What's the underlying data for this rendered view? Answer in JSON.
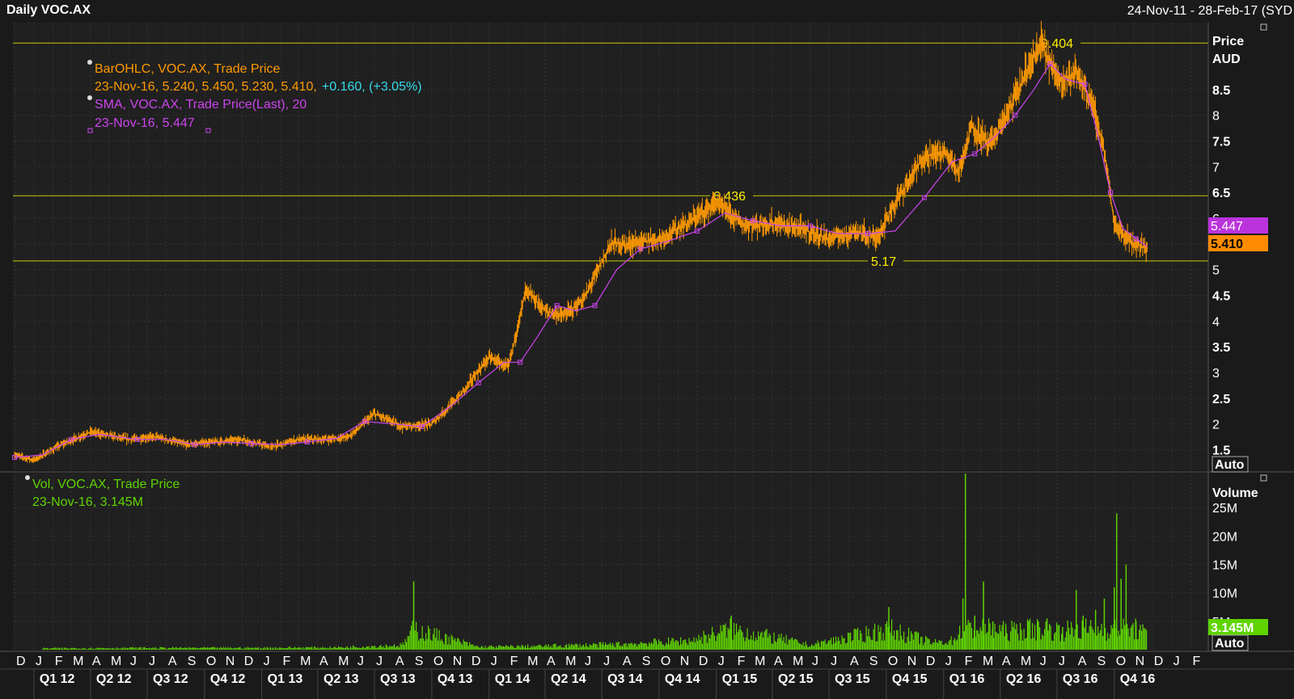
{
  "header": {
    "title": "Daily VOC.AX",
    "range": "24-Nov-11 - 28-Feb-17 (SYD"
  },
  "legend": {
    "ohlc_name": "BarOHLC, VOC.AX, Trade Price",
    "ohlc_values": "23-Nov-16, 5.240, 5.450, 5.230, 5.410,",
    "ohlc_change": "+0.160, (+3.05%)",
    "sma_name": "SMA, VOC.AX, Trade Price(Last),  20",
    "sma_values": "23-Nov-16, 5.447",
    "vol_name": "Vol, VOC.AX, Trade Price",
    "vol_values": "23-Nov-16, 3.145M"
  },
  "price_axis": {
    "title1": "Price",
    "title2": "AUD",
    "last_sma": "5.447",
    "last_close": "5.410",
    "auto": "Auto"
  },
  "volume_axis": {
    "title": "Volume",
    "last_vol": "3.145M",
    "auto": "Auto"
  },
  "colors": {
    "bg": "#1a1a1a",
    "grid": "#333333",
    "price": "#ff9a00",
    "sma": "#cc44ee",
    "volume": "#5fd400",
    "hline": "#c8c800",
    "cyan": "#33ddee"
  },
  "chart_data": [
    {
      "type": "line",
      "title": "Daily VOC.AX",
      "ylabel": "Price AUD",
      "ylim": [
        1.1,
        9.8
      ],
      "yticks": [
        1.5,
        2,
        2.5,
        3,
        3.5,
        4,
        4.5,
        5,
        5.5,
        6,
        6.5,
        7,
        7.5,
        8,
        8.5
      ],
      "ytick_labels": [
        "1.5",
        "2",
        "2.5",
        "3",
        "3.5",
        "4",
        "4.5",
        "5",
        "5.5",
        "6",
        "6.5",
        "7",
        "7.5",
        "8",
        "8.5"
      ],
      "x_range": [
        "24-Nov-11",
        "28-Feb-17"
      ],
      "month_labels": [
        "D",
        "J",
        "F",
        "M",
        "A",
        "M",
        "J",
        "J",
        "A",
        "S",
        "O",
        "N",
        "D",
        "J",
        "F",
        "M",
        "A",
        "M",
        "J",
        "J",
        "A",
        "S",
        "O",
        "N",
        "D",
        "J",
        "F",
        "M",
        "A",
        "M",
        "J",
        "J",
        "A",
        "S",
        "O",
        "N",
        "D",
        "J",
        "F",
        "M",
        "A",
        "M",
        "J",
        "J",
        "A",
        "S",
        "O",
        "N",
        "D",
        "J",
        "F",
        "M",
        "A",
        "M",
        "J",
        "J",
        "A",
        "S",
        "O",
        "N",
        "D",
        "J",
        "F"
      ],
      "quarter_labels": [
        "Q1 12",
        "Q2 12",
        "Q3 12",
        "Q4 12",
        "Q1 13",
        "Q2 13",
        "Q3 13",
        "Q4 13",
        "Q1 14",
        "Q2 14",
        "Q3 14",
        "Q4 14",
        "Q1 15",
        "Q2 15",
        "Q3 15",
        "Q4 15",
        "Q1 16",
        "Q2 16",
        "Q3 16",
        "Q4 16"
      ],
      "horizontal_lines": [
        {
          "value": 9.404,
          "label": "9.404"
        },
        {
          "value": 6.436,
          "label": "6.436"
        },
        {
          "value": 5.17,
          "label": "5.17"
        }
      ],
      "series": [
        {
          "name": "BarOHLC, VOC.AX, Trade Price",
          "x": [
            "2011-12-01",
            "2012-01-01",
            "2012-02-15",
            "2012-04-01",
            "2012-06-01",
            "2012-07-15",
            "2012-09-01",
            "2012-10-15",
            "2012-12-01",
            "2013-01-15",
            "2013-03-01",
            "2013-04-15",
            "2013-05-20",
            "2013-07-01",
            "2013-08-15",
            "2013-10-01",
            "2013-11-15",
            "2014-01-01",
            "2014-02-01",
            "2014-03-01",
            "2014-04-01",
            "2014-05-01",
            "2014-06-01",
            "2014-07-15",
            "2014-08-15",
            "2014-10-01",
            "2014-11-15",
            "2015-01-01",
            "2015-02-15",
            "2015-04-01",
            "2015-05-15",
            "2015-07-01",
            "2015-08-15",
            "2015-09-15",
            "2015-10-15",
            "2015-12-01",
            "2016-01-01",
            "2016-01-25",
            "2016-02-15",
            "2016-03-15",
            "2016-04-15",
            "2016-05-15",
            "2016-06-07",
            "2016-07-01",
            "2016-08-01",
            "2016-08-25",
            "2016-09-15",
            "2016-10-01",
            "2016-10-15",
            "2016-11-01",
            "2016-11-23"
          ],
          "values": [
            1.4,
            1.3,
            1.6,
            1.85,
            1.7,
            1.75,
            1.6,
            1.65,
            1.7,
            1.55,
            1.7,
            1.7,
            1.75,
            2.2,
            1.95,
            2.0,
            2.55,
            3.3,
            3.1,
            4.6,
            4.2,
            4.1,
            4.4,
            5.5,
            5.5,
            5.6,
            5.9,
            6.3,
            5.85,
            5.9,
            5.8,
            5.6,
            5.75,
            5.6,
            6.3,
            7.2,
            7.3,
            6.9,
            7.8,
            7.4,
            8.1,
            8.9,
            9.4,
            8.7,
            8.8,
            8.3,
            7.3,
            5.9,
            5.7,
            5.5,
            5.41
          ]
        },
        {
          "name": "SMA, VOC.AX, Trade Price(Last),  20",
          "x": [
            "2011-12-01",
            "2012-01-15",
            "2012-03-01",
            "2012-04-15",
            "2012-06-15",
            "2012-08-01",
            "2012-09-15",
            "2012-11-01",
            "2012-12-15",
            "2013-02-01",
            "2013-03-15",
            "2013-05-01",
            "2013-06-15",
            "2013-08-01",
            "2013-09-15",
            "2013-11-01",
            "2013-12-15",
            "2014-01-25",
            "2014-02-20",
            "2014-03-20",
            "2014-04-20",
            "2014-05-20",
            "2014-06-20",
            "2014-07-25",
            "2014-09-01",
            "2014-10-15",
            "2014-12-01",
            "2015-01-15",
            "2015-03-01",
            "2015-04-15",
            "2015-06-01",
            "2015-07-15",
            "2015-09-01",
            "2015-10-15",
            "2015-12-01",
            "2016-01-15",
            "2016-02-20",
            "2016-03-25",
            "2016-04-25",
            "2016-05-25",
            "2016-06-20",
            "2016-07-15",
            "2016-08-15",
            "2016-09-05",
            "2016-09-25",
            "2016-10-15",
            "2016-11-05",
            "2016-11-23"
          ],
          "values": [
            1.35,
            1.4,
            1.7,
            1.8,
            1.7,
            1.7,
            1.6,
            1.65,
            1.62,
            1.6,
            1.65,
            1.72,
            2.05,
            2.0,
            1.95,
            2.35,
            2.8,
            3.2,
            3.2,
            3.7,
            4.3,
            4.2,
            4.3,
            5.0,
            5.4,
            5.55,
            5.75,
            6.1,
            5.95,
            5.85,
            5.85,
            5.7,
            5.7,
            5.75,
            6.4,
            7.1,
            7.25,
            7.6,
            8.0,
            8.5,
            9.0,
            8.7,
            8.6,
            7.6,
            6.5,
            5.8,
            5.6,
            5.447
          ]
        }
      ]
    },
    {
      "type": "bar",
      "title": "Vol, VOC.AX, Trade Price",
      "ylabel": "Volume",
      "ylim": [
        0,
        31
      ],
      "yticks": [
        5,
        10,
        15,
        20,
        25
      ],
      "ytick_labels": [
        "5M",
        "10M",
        "15M",
        "20M",
        "25M"
      ],
      "series": [
        {
          "name": "Vol, VOC.AX, Trade Price",
          "x": [
            "2012-01-15",
            "2012-06-15",
            "2012-12-15",
            "2013-05-01",
            "2013-08-15",
            "2013-09-02",
            "2013-12-15",
            "2014-04-01",
            "2014-08-01",
            "2014-11-20",
            "2015-01-25",
            "2015-06-01",
            "2015-10-05",
            "2015-12-15",
            "2016-01-15",
            "2016-02-01",
            "2016-02-05",
            "2016-02-20",
            "2016-03-05",
            "2016-03-20",
            "2016-04-10",
            "2016-05-15",
            "2016-06-01",
            "2016-06-15",
            "2016-07-10",
            "2016-08-01",
            "2016-08-12",
            "2016-09-01",
            "2016-09-15",
            "2016-10-01",
            "2016-10-05",
            "2016-10-12",
            "2016-10-20",
            "2016-11-05",
            "2016-11-23"
          ],
          "values": [
            0.3,
            0.4,
            0.4,
            0.5,
            1.0,
            12.0,
            0.6,
            0.8,
            1.2,
            2.0,
            6.0,
            1.0,
            7.5,
            1.5,
            2.0,
            9.0,
            31.0,
            6.0,
            12.0,
            5.0,
            4.0,
            5.0,
            5.0,
            5.5,
            4.0,
            10.5,
            6.0,
            7.0,
            9.0,
            11.0,
            24.0,
            12.5,
            15.0,
            5.0,
            3.145
          ]
        }
      ]
    }
  ]
}
